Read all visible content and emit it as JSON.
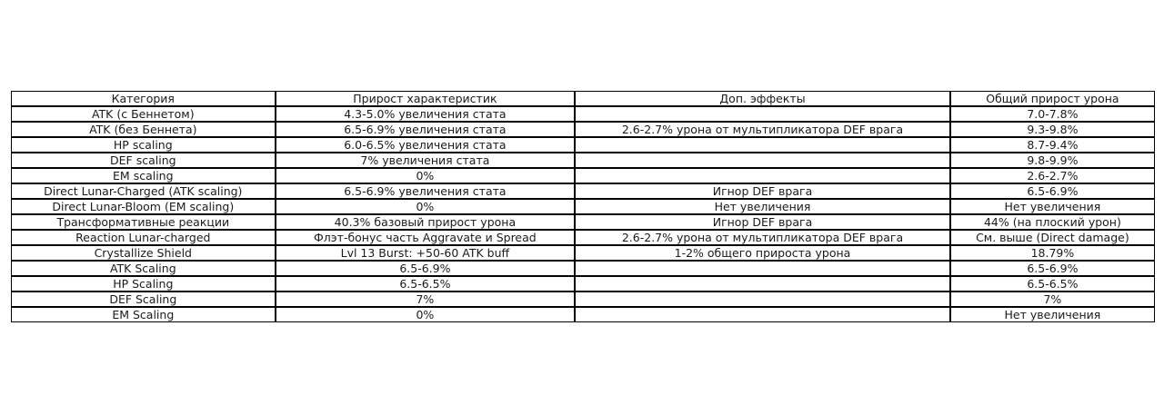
{
  "chart_data": {
    "type": "table",
    "columns": [
      "Категория",
      "Прирост характеристик",
      "Доп. эффекты",
      "Общий прирост урона"
    ],
    "rows": [
      [
        "ATK (с Беннетом)",
        "4.3-5.0% увеличения стата",
        "",
        "7.0-7.8%"
      ],
      [
        "ATK (без Беннета)",
        "6.5-6.9% увеличения стата",
        "2.6-2.7% урона от мультипликатора DEF врага",
        "9.3-9.8%"
      ],
      [
        "HP scaling",
        "6.0-6.5% увеличения стата",
        "",
        "8.7-9.4%"
      ],
      [
        "DEF scaling",
        "7% увеличения стата",
        "",
        "9.8-9.9%"
      ],
      [
        "EM scaling",
        "0%",
        "",
        "2.6-2.7%"
      ],
      [
        "Direct Lunar-Charged (ATK scaling)",
        "6.5-6.9% увеличения стата",
        "Игнор DEF врага",
        "6.5-6.9%"
      ],
      [
        "Direct Lunar-Bloom (EM scaling)",
        "0%",
        "Нет увеличения",
        "Нет увеличения"
      ],
      [
        "Трансформативные реакции",
        "40.3% базовый прирост урона",
        "Игнор DEF врага",
        "44% (на плоский урон)"
      ],
      [
        "Reaction Lunar-charged",
        "Флэт-бонус часть Aggravate и Spread",
        "2.6-2.7% урона от мультипликатора DEF врага",
        "См. выше (Direct damage)"
      ],
      [
        "Crystallize Shield",
        "Lvl 13 Burst: +50-60 ATK buff",
        "1-2% общего прироста урона",
        "18.79%"
      ],
      [
        "ATK Scaling",
        "6.5-6.9%",
        "",
        "6.5-6.9%"
      ],
      [
        "HP Scaling",
        "6.5-6.5%",
        "",
        "6.5-6.5%"
      ],
      [
        "DEF Scaling",
        "7%",
        "",
        "7%"
      ],
      [
        "EM Scaling",
        "0%",
        "",
        "Нет увеличения"
      ]
    ]
  },
  "colors": {
    "background": "#ffffff",
    "border": "#000000",
    "text": "#1a1a1a"
  }
}
